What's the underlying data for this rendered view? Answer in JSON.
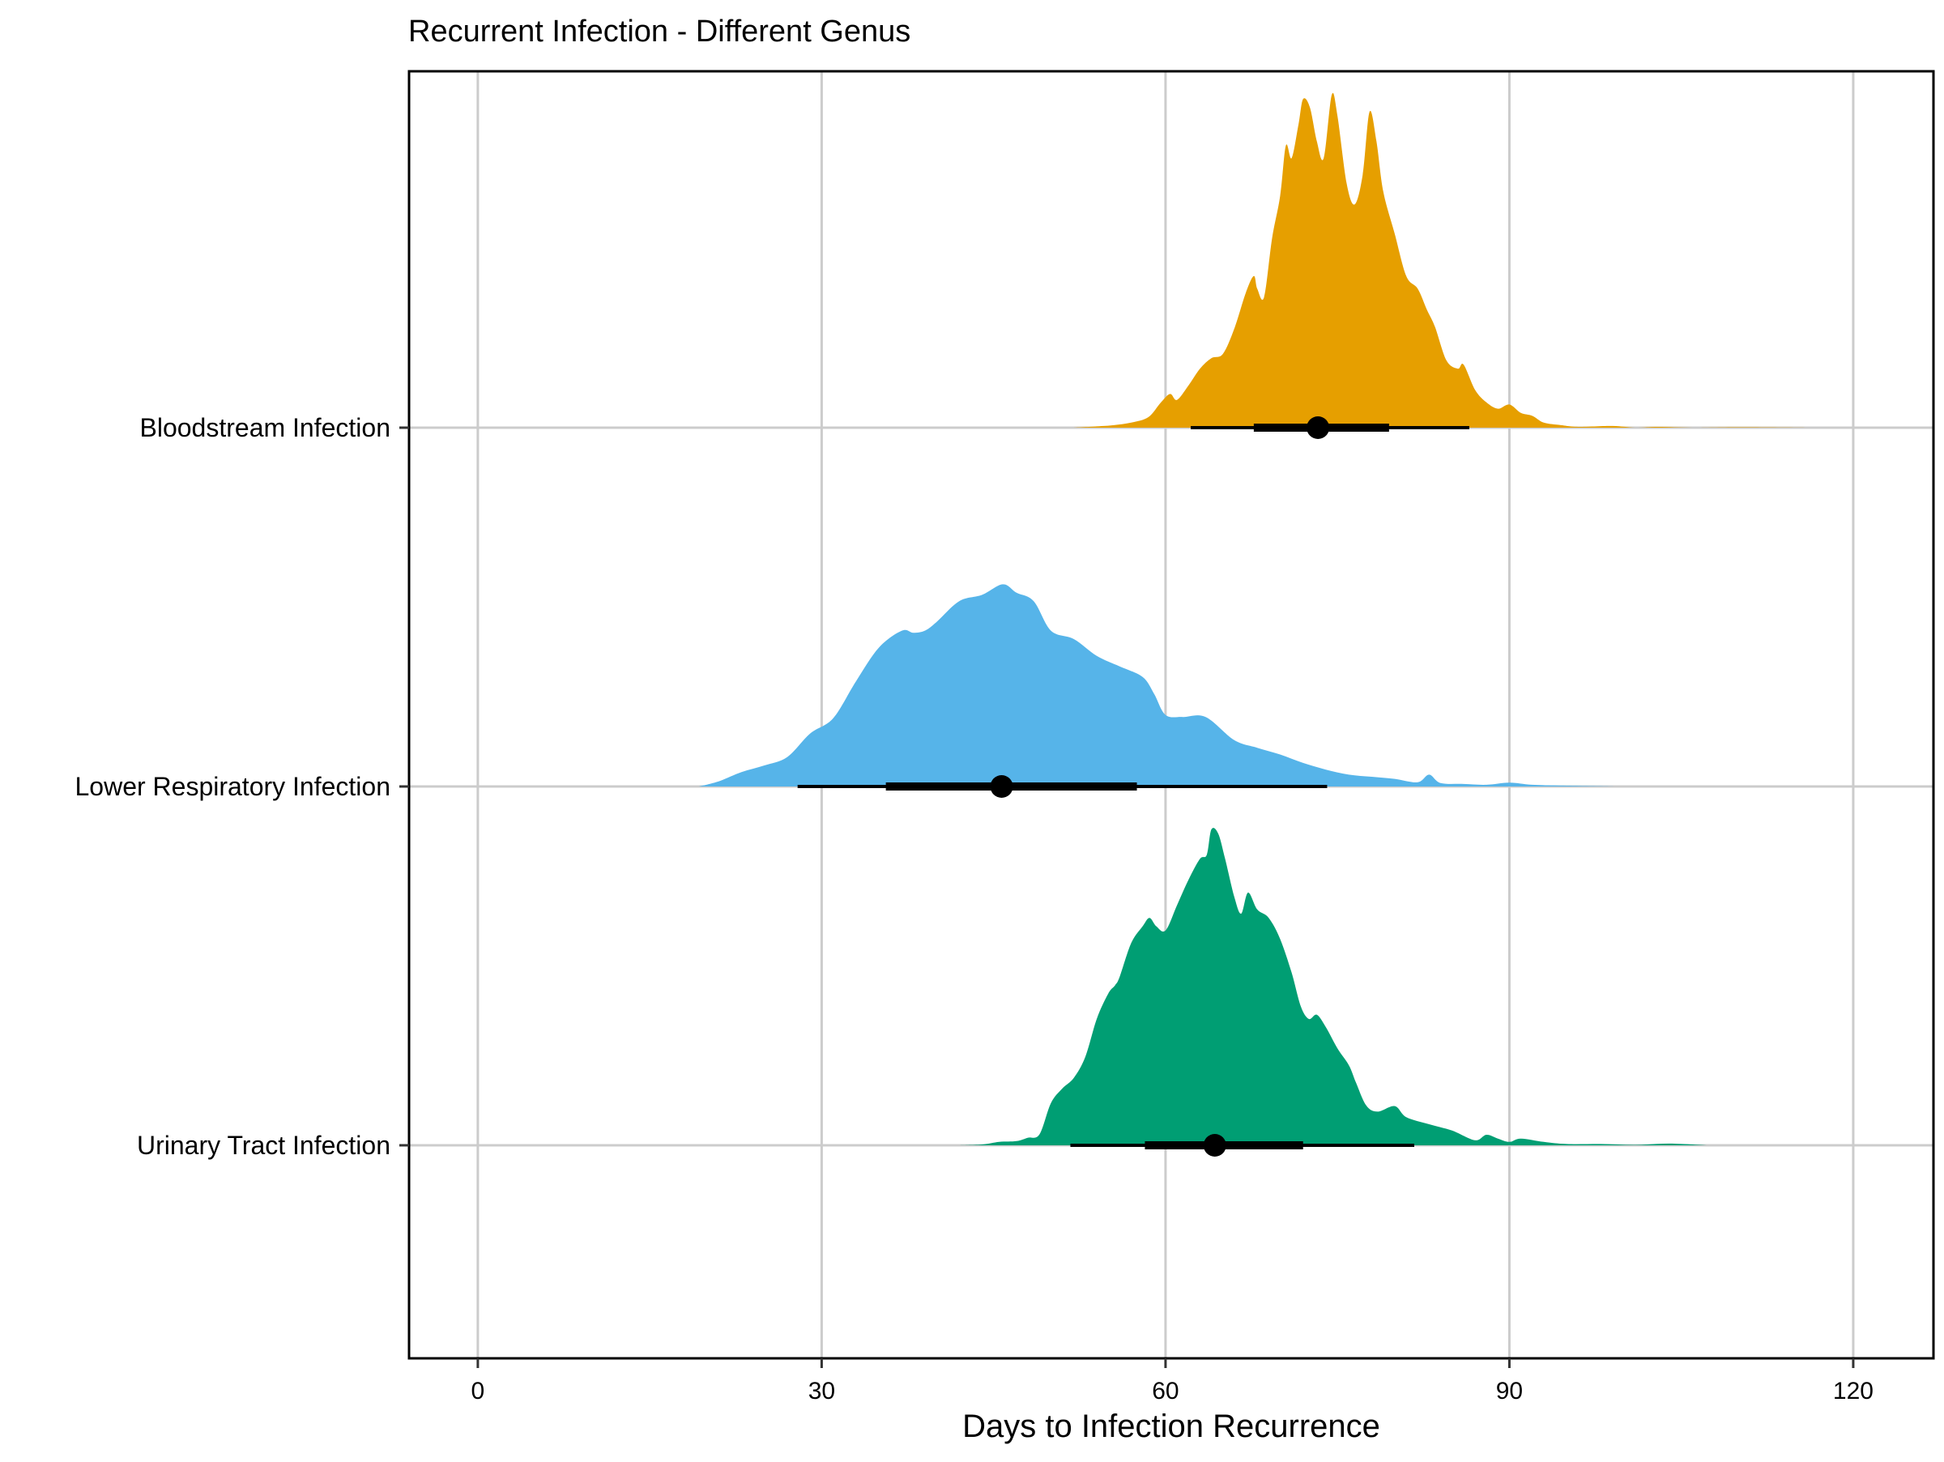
{
  "chart_data": {
    "type": "ridgeline",
    "title": "Recurrent Infection - Different Genus",
    "xlabel": "Days to Infection Recurrence",
    "ylabel": "",
    "xlim": [
      -6,
      127
    ],
    "xticks": [
      0,
      30,
      60,
      90,
      120
    ],
    "x_tick_labels": [
      "0",
      "30",
      "60",
      "90",
      "120"
    ],
    "grid": true,
    "legend": "none",
    "categories": [
      "Bloodstream Infection",
      "Lower Respiratory Infection",
      "Urinary Tract Infection"
    ],
    "series": [
      {
        "name": "Bloodstream Infection",
        "color": "#E69F00",
        "point": 73.3,
        "interval_66": [
          67.7,
          79.5
        ],
        "interval_95": [
          62.2,
          86.5
        ],
        "density": [
          [
            52,
            0
          ],
          [
            54,
            0.003
          ],
          [
            55.5,
            0.006
          ],
          [
            57,
            0.012
          ],
          [
            58.5,
            0.025
          ],
          [
            59.6,
            0.06
          ],
          [
            60.4,
            0.08
          ],
          [
            61,
            0.066
          ],
          [
            62,
            0.1
          ],
          [
            63,
            0.14
          ],
          [
            64,
            0.165
          ],
          [
            65,
            0.175
          ],
          [
            66,
            0.235
          ],
          [
            67,
            0.32
          ],
          [
            67.7,
            0.36
          ],
          [
            68,
            0.33
          ],
          [
            68.6,
            0.31
          ],
          [
            69.3,
            0.45
          ],
          [
            70,
            0.55
          ],
          [
            70.5,
            0.67
          ],
          [
            71,
            0.64
          ],
          [
            71.6,
            0.72
          ],
          [
            72,
            0.78
          ],
          [
            72.6,
            0.76
          ],
          [
            73.2,
            0.68
          ],
          [
            73.8,
            0.64
          ],
          [
            74.5,
            0.79
          ],
          [
            75,
            0.74
          ],
          [
            75.8,
            0.58
          ],
          [
            76.5,
            0.53
          ],
          [
            77.2,
            0.6
          ],
          [
            77.8,
            0.75
          ],
          [
            78.4,
            0.68
          ],
          [
            79,
            0.56
          ],
          [
            80,
            0.46
          ],
          [
            81,
            0.36
          ],
          [
            82,
            0.33
          ],
          [
            82.8,
            0.28
          ],
          [
            83.5,
            0.24
          ],
          [
            84.5,
            0.16
          ],
          [
            85.5,
            0.14
          ],
          [
            86,
            0.15
          ],
          [
            87,
            0.09
          ],
          [
            88,
            0.06
          ],
          [
            89,
            0.045
          ],
          [
            90,
            0.055
          ],
          [
            91,
            0.035
          ],
          [
            92,
            0.028
          ],
          [
            93,
            0.012
          ],
          [
            94.5,
            0.006
          ],
          [
            96,
            0.002
          ],
          [
            99,
            0.004
          ],
          [
            101,
            0.0
          ],
          [
            103,
            0.002
          ],
          [
            106,
            0.0
          ],
          [
            110,
            0.001
          ],
          [
            116,
            0.0
          ]
        ]
      },
      {
        "name": "Lower Respiratory Infection",
        "color": "#56B4E9",
        "point": 45.7,
        "interval_66": [
          35.6,
          57.5
        ],
        "interval_95": [
          27.9,
          74.1
        ],
        "density": [
          [
            19.3,
            0
          ],
          [
            21,
            0.012
          ],
          [
            23,
            0.034
          ],
          [
            25,
            0.05
          ],
          [
            27,
            0.07
          ],
          [
            29,
            0.126
          ],
          [
            31,
            0.162
          ],
          [
            33,
            0.25
          ],
          [
            35,
            0.33
          ],
          [
            37,
            0.37
          ],
          [
            38,
            0.365
          ],
          [
            39,
            0.37
          ],
          [
            40,
            0.39
          ],
          [
            42,
            0.44
          ],
          [
            44,
            0.455
          ],
          [
            45.8,
            0.48
          ],
          [
            47,
            0.46
          ],
          [
            48.5,
            0.44
          ],
          [
            50,
            0.37
          ],
          [
            52,
            0.35
          ],
          [
            54,
            0.31
          ],
          [
            56,
            0.285
          ],
          [
            58,
            0.26
          ],
          [
            59,
            0.22
          ],
          [
            60,
            0.17
          ],
          [
            61.5,
            0.165
          ],
          [
            63.5,
            0.165
          ],
          [
            66,
            0.11
          ],
          [
            68,
            0.092
          ],
          [
            70,
            0.076
          ],
          [
            72,
            0.056
          ],
          [
            74,
            0.04
          ],
          [
            76,
            0.028
          ],
          [
            78,
            0.023
          ],
          [
            80,
            0.018
          ],
          [
            82,
            0.01
          ],
          [
            83,
            0.028
          ],
          [
            84,
            0.008
          ],
          [
            86,
            0.006
          ],
          [
            88,
            0.004
          ],
          [
            90,
            0.009
          ],
          [
            92,
            0.004
          ],
          [
            95,
            0.002
          ],
          [
            99.3,
            0
          ]
        ]
      },
      {
        "name": "Urinary Tract Infection",
        "color": "#009E73",
        "point": 64.3,
        "interval_66": [
          58.2,
          72.0
        ],
        "interval_95": [
          51.7,
          81.7
        ],
        "density": [
          [
            42,
            0
          ],
          [
            44,
            0.002
          ],
          [
            45.5,
            0.008
          ],
          [
            47,
            0.01
          ],
          [
            48,
            0.018
          ],
          [
            49,
            0.026
          ],
          [
            50,
            0.1
          ],
          [
            51,
            0.135
          ],
          [
            52,
            0.16
          ],
          [
            53,
            0.21
          ],
          [
            54,
            0.3
          ],
          [
            55,
            0.36
          ],
          [
            55.6,
            0.38
          ],
          [
            56,
            0.4
          ],
          [
            57,
            0.48
          ],
          [
            58,
            0.52
          ],
          [
            58.6,
            0.54
          ],
          [
            59.2,
            0.52
          ],
          [
            60,
            0.51
          ],
          [
            61,
            0.57
          ],
          [
            62,
            0.63
          ],
          [
            63,
            0.68
          ],
          [
            63.6,
            0.69
          ],
          [
            64,
            0.75
          ],
          [
            64.6,
            0.74
          ],
          [
            65.2,
            0.68
          ],
          [
            66,
            0.59
          ],
          [
            66.6,
            0.55
          ],
          [
            67.2,
            0.6
          ],
          [
            68,
            0.56
          ],
          [
            69,
            0.54
          ],
          [
            70,
            0.49
          ],
          [
            71,
            0.41
          ],
          [
            71.8,
            0.33
          ],
          [
            72.5,
            0.3
          ],
          [
            73.2,
            0.31
          ],
          [
            74,
            0.28
          ],
          [
            75,
            0.23
          ],
          [
            76,
            0.19
          ],
          [
            76.6,
            0.15
          ],
          [
            77.5,
            0.095
          ],
          [
            78.5,
            0.08
          ],
          [
            80,
            0.093
          ],
          [
            81,
            0.067
          ],
          [
            83,
            0.05
          ],
          [
            85,
            0.035
          ],
          [
            87,
            0.012
          ],
          [
            88,
            0.025
          ],
          [
            89,
            0.016
          ],
          [
            90,
            0.008
          ],
          [
            91,
            0.016
          ],
          [
            93,
            0.008
          ],
          [
            95,
            0.003
          ],
          [
            98,
            0.003
          ],
          [
            101,
            0.001
          ],
          [
            104,
            0.004
          ],
          [
            107.2,
            0
          ]
        ]
      }
    ]
  }
}
